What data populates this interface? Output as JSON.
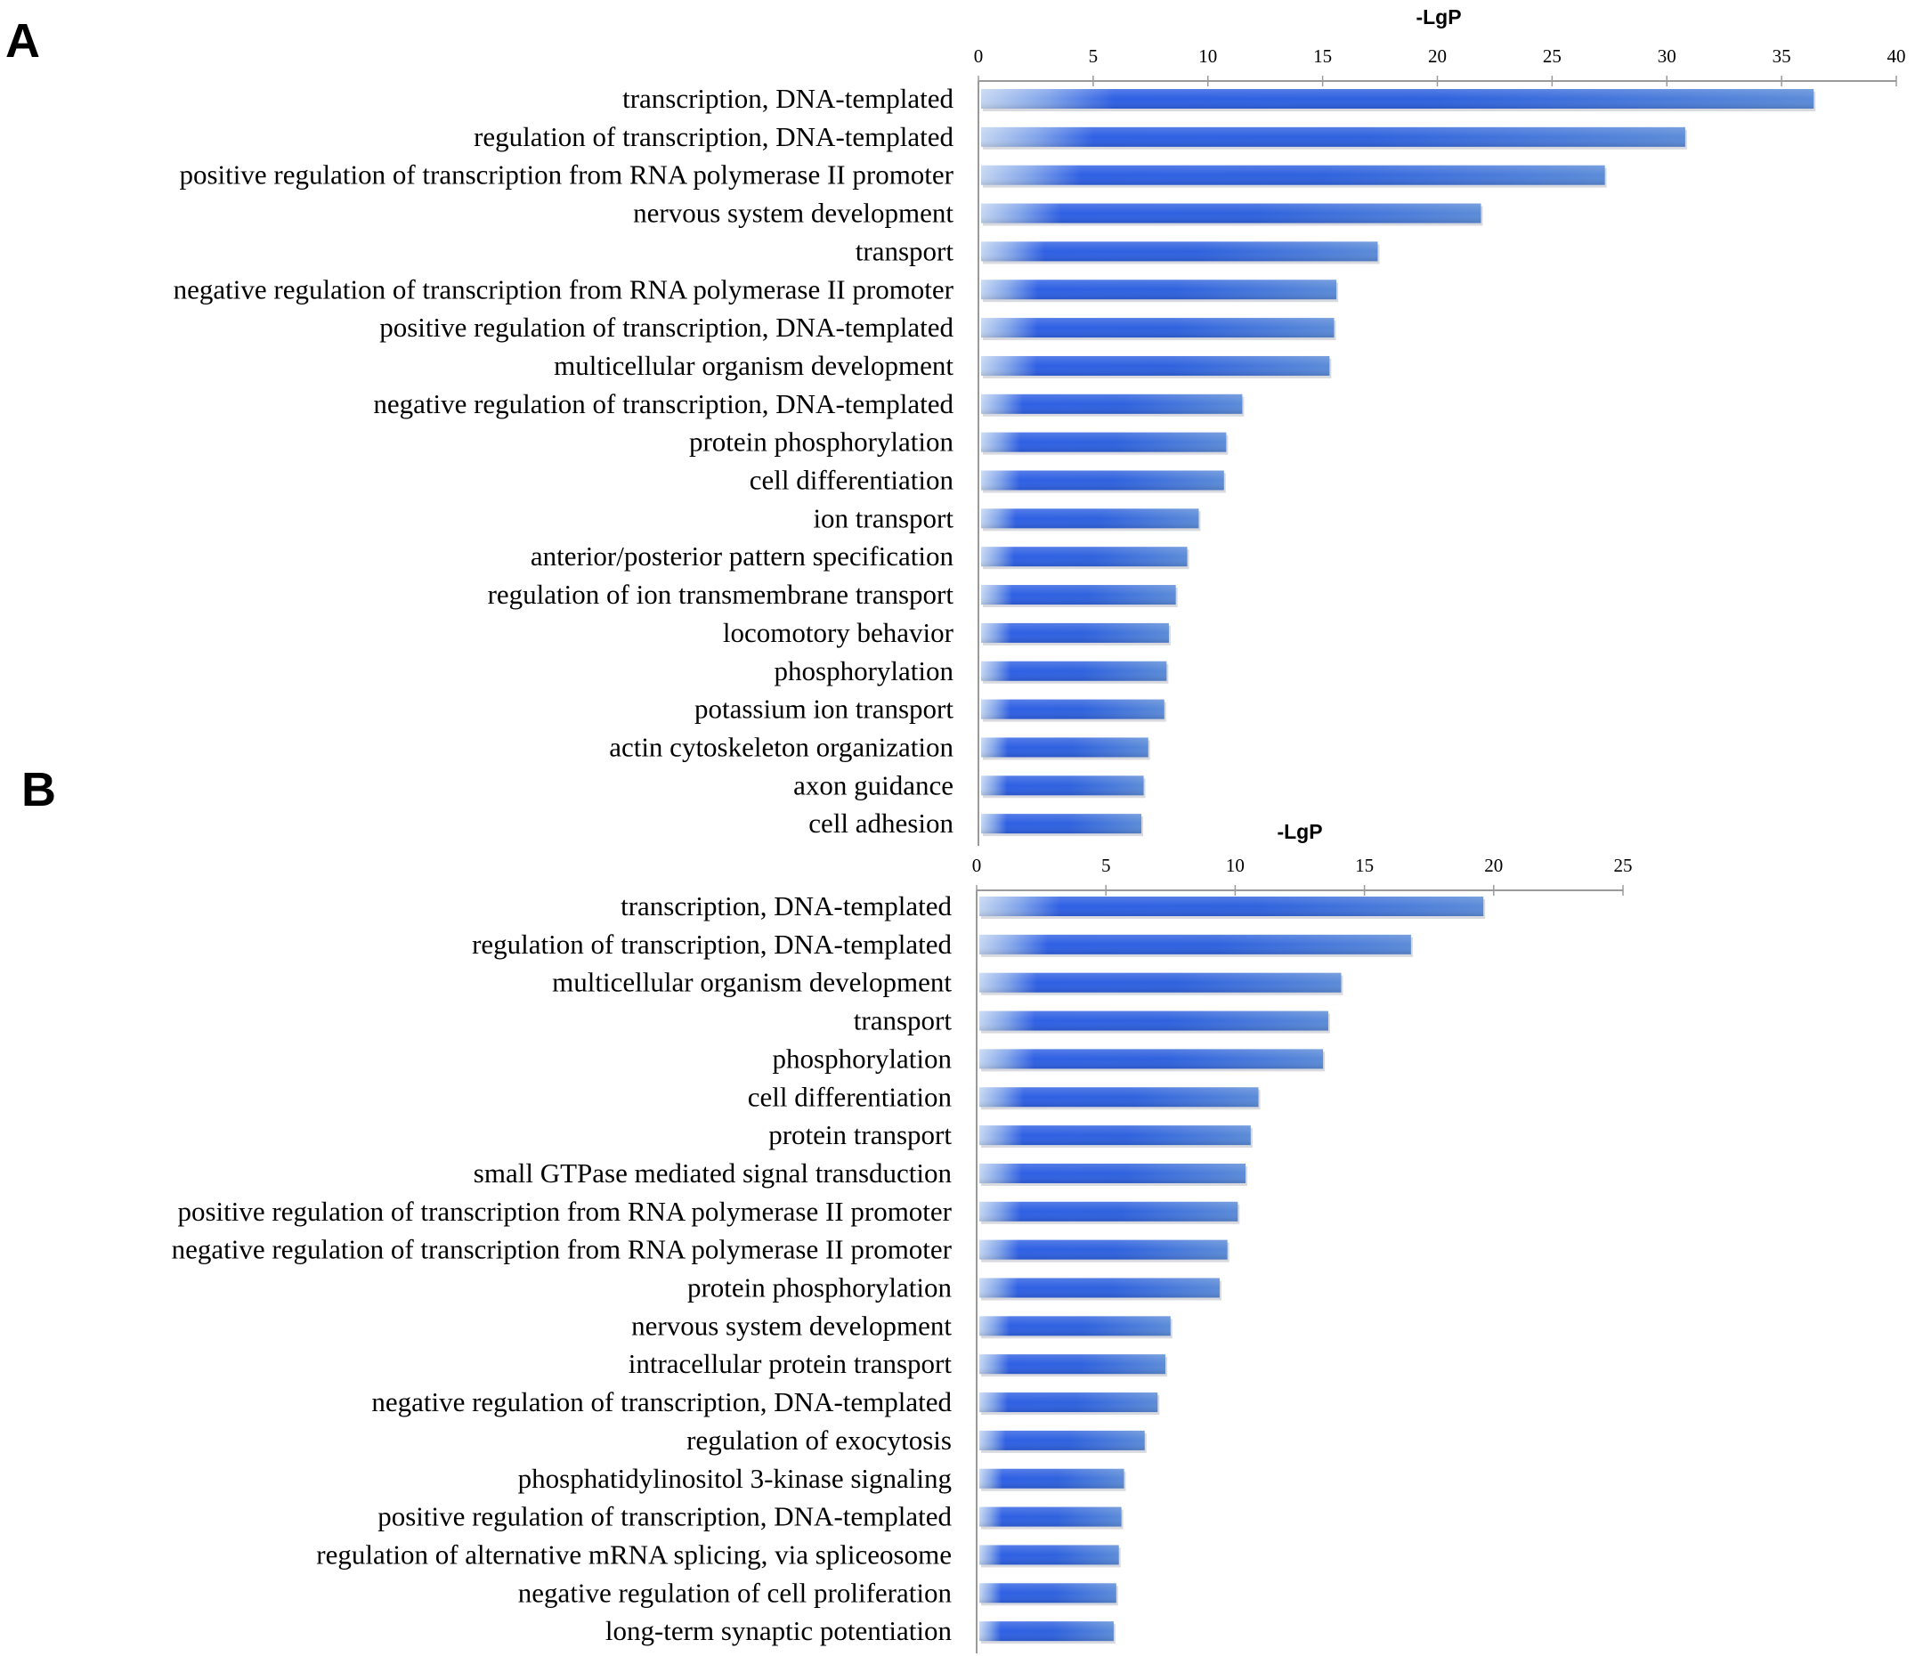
{
  "chart_data": [
    {
      "panel": "A",
      "type": "bar",
      "orientation": "horizontal",
      "xlabel": "-LgP",
      "xlim": [
        0,
        40
      ],
      "xticks": [
        0,
        5,
        10,
        15,
        20,
        25,
        30,
        35,
        40
      ],
      "axis_position": "top",
      "categories": [
        "transcription, DNA-templated",
        "regulation of transcription, DNA-templated",
        "positive regulation of transcription from RNA polymerase II promoter",
        "nervous system development",
        "transport",
        "negative regulation of transcription from RNA polymerase II promoter",
        "positive regulation of transcription, DNA-templated",
        "multicellular organism development",
        "negative regulation of transcription, DNA-templated",
        "protein phosphorylation",
        "cell differentiation",
        "ion transport",
        "anterior/posterior pattern specification",
        "regulation of ion transmembrane transport",
        "locomotory behavior",
        "phosphorylation",
        "potassium ion transport",
        "actin cytoskeleton organization",
        "axon guidance",
        "cell adhesion"
      ],
      "values": [
        36.4,
        30.8,
        27.3,
        21.9,
        17.4,
        15.6,
        15.5,
        15.3,
        11.5,
        10.8,
        10.7,
        9.6,
        9.1,
        8.6,
        8.3,
        8.2,
        8.1,
        7.4,
        7.2,
        7.1
      ]
    },
    {
      "panel": "B",
      "type": "bar",
      "orientation": "horizontal",
      "xlabel": "-LgP",
      "xlim": [
        0,
        25
      ],
      "xticks": [
        0,
        5,
        10,
        15,
        20,
        25
      ],
      "axis_position": "top",
      "categories": [
        "transcription, DNA-templated",
        "regulation of transcription, DNA-templated",
        "multicellular organism development",
        "transport",
        "phosphorylation",
        "cell differentiation",
        "protein transport",
        "small GTPase mediated signal transduction",
        "positive regulation of transcription from RNA polymerase II promoter",
        "negative regulation of transcription from RNA polymerase II promoter",
        "protein phosphorylation",
        "nervous system development",
        "intracellular protein transport",
        "negative regulation of transcription, DNA-templated",
        "regulation of exocytosis",
        "phosphatidylinositol 3-kinase signaling",
        "positive regulation of transcription, DNA-templated",
        "regulation of alternative mRNA splicing, via spliceosome",
        "negative regulation of cell proliferation",
        "long-term synaptic potentiation"
      ],
      "values": [
        19.6,
        16.8,
        14.1,
        13.6,
        13.4,
        10.9,
        10.6,
        10.4,
        10.1,
        9.7,
        9.4,
        7.5,
        7.3,
        7.0,
        6.5,
        5.7,
        5.6,
        5.5,
        5.4,
        5.3
      ]
    }
  ],
  "colors": {
    "bar_light": "#c4d6f2",
    "bar_mid": "#2f60e4",
    "bar_end": "#5b8bd8",
    "axis": "#9a9a9a"
  }
}
